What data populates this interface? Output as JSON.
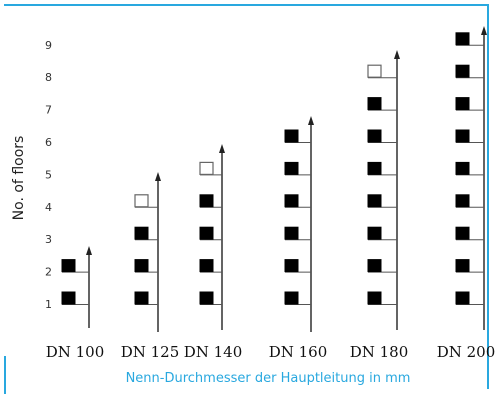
{
  "colors": {
    "frame": "#29a8df",
    "caption": "#29a8df",
    "fixture_filled": "#000000",
    "fixture_open": "#ffffff",
    "line": "#222222"
  },
  "axis": {
    "y_title": "No. of floors",
    "x_title": "Nenn-Durchmesser der Hauptleitung in mm",
    "floor_numbers": [
      "1",
      "2",
      "3",
      "4",
      "5",
      "6",
      "7",
      "8",
      "9"
    ]
  },
  "columns": [
    {
      "label": "DN 100",
      "max_floors": 2,
      "open_top_floor": null
    },
    {
      "label": "DN 125",
      "max_floors": 4,
      "open_top_floor": 4
    },
    {
      "label": "DN 140",
      "max_floors": 5,
      "open_top_floor": 5
    },
    {
      "label": "DN 160",
      "max_floors": 6,
      "open_top_floor": null
    },
    {
      "label": "DN 180",
      "max_floors": 8,
      "open_top_floor": 8
    },
    {
      "label": "DN 200",
      "max_floors": 9,
      "open_top_floor": null
    }
  ]
}
